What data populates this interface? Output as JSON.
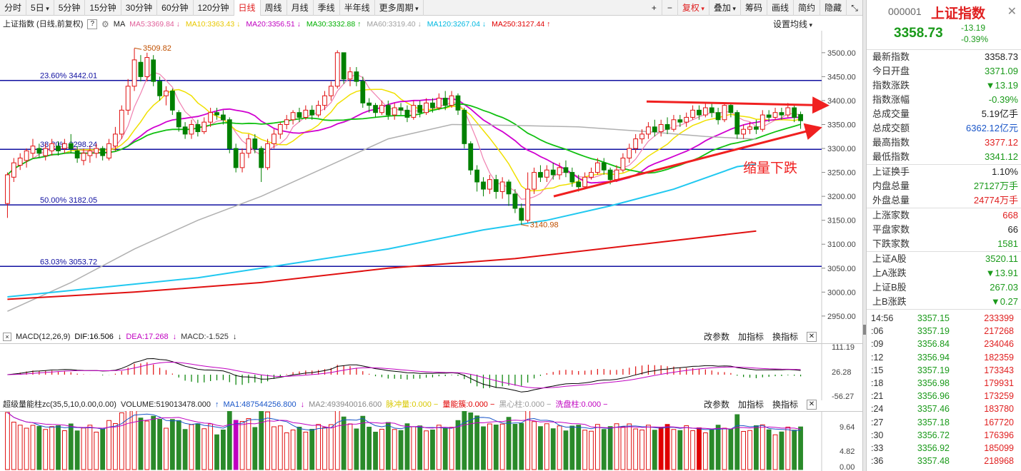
{
  "toolbar": {
    "items": [
      "分时",
      "5日",
      "5分钟",
      "15分钟",
      "30分钟",
      "60分钟",
      "120分钟",
      "日线",
      "周线",
      "月线",
      "季线",
      "半年线",
      "更多周期"
    ],
    "active": "日线",
    "right_items": [
      "+",
      "−",
      "复权",
      "叠加",
      "筹码",
      "画线",
      "简约",
      "隐藏"
    ],
    "dropdown_marker": "▾"
  },
  "main_legend": {
    "title": "上证指数 (日线,前复权)",
    "help": "?",
    "ma_label": "MA",
    "ma_items": [
      {
        "text": "MA5:3369.84",
        "arrow": "↓",
        "color": "#e0609a"
      },
      {
        "text": "MA10:3363.43",
        "arrow": "↓",
        "color": "#e8c800"
      },
      {
        "text": "MA20:3356.51",
        "arrow": "↓",
        "color": "#c000c0"
      },
      {
        "text": "MA30:3332.88",
        "arrow": "↑",
        "color": "#00b000"
      },
      {
        "text": "MA60:3319.40",
        "arrow": "↓",
        "color": "#a0a0a0"
      },
      {
        "text": "MA120:3267.04",
        "arrow": "↓",
        "color": "#00b8e0"
      },
      {
        "text": "MA250:3127.44",
        "arrow": "↑",
        "color": "#e00000"
      }
    ],
    "settings": "设置均线"
  },
  "fib_lines": [
    {
      "label": "23.60% 3442.01",
      "value": 3442.01
    },
    {
      "label": "38.20% 3298.24",
      "value": 3298.24
    },
    {
      "label": "50.00% 3182.05",
      "value": 3182.05
    },
    {
      "label": "63.03% 3053.72",
      "value": 3053.72
    }
  ],
  "annotations": {
    "high": "3509.82",
    "low": "3140.98",
    "text": "缩量下跌"
  },
  "price_axis": [
    "3500.00",
    "3450.00",
    "3400.00",
    "3350.00",
    "3300.00",
    "3250.00",
    "3200.00",
    "3150.00",
    "3100.00",
    "3050.00",
    "3000.00",
    "2950.00"
  ],
  "macd": {
    "label": "MACD(12,26,9)",
    "dif": "DIF:16.506",
    "dea": "DEA:17.268",
    "macd": "MACD:-1.525",
    "axis": [
      "111.19",
      "26.28",
      "-56.27"
    ],
    "buttons": [
      "改参数",
      "加指标",
      "换指标"
    ]
  },
  "volume": {
    "label": "超级量能柱zc(35,5,10,0.00,0.00)",
    "volume": "VOLUME:519013478.000",
    "ma1": "MA1:487544256.800",
    "ma2": "MA2:493940016.600",
    "extra": [
      {
        "text": "脉冲量:0.000",
        "color": "#d8c800"
      },
      {
        "text": "量能簇:0.000",
        "color": "#e00000"
      },
      {
        "text": "黑心柱:0.000",
        "color": "#999999"
      },
      {
        "text": "洗盘柱:0.000",
        "color": "#c000c0"
      }
    ],
    "axis": [
      "9.64",
      "4.82",
      "0.00"
    ],
    "buttons": [
      "改参数",
      "加指标",
      "换指标"
    ]
  },
  "chart_data": {
    "type": "candlestick",
    "price_range": [
      2920,
      3540
    ],
    "candles": [
      [
        3185,
        3245,
        3155,
        3250
      ],
      [
        3240,
        3270,
        3230,
        3280
      ],
      [
        3265,
        3280,
        3255,
        3290
      ],
      [
        3275,
        3295,
        3260,
        3300
      ],
      [
        3290,
        3305,
        3280,
        3320
      ],
      [
        3300,
        3290,
        3280,
        3310
      ],
      [
        3285,
        3300,
        3275,
        3310
      ],
      [
        3295,
        3310,
        3285,
        3320
      ],
      [
        3305,
        3295,
        3285,
        3315
      ],
      [
        3300,
        3310,
        3290,
        3320
      ],
      [
        3310,
        3300,
        3290,
        3330
      ],
      [
        3295,
        3280,
        3270,
        3305
      ],
      [
        3275,
        3290,
        3265,
        3300
      ],
      [
        3285,
        3295,
        3270,
        3305
      ],
      [
        3290,
        3300,
        3280,
        3310
      ],
      [
        3300,
        3285,
        3275,
        3305
      ],
      [
        3280,
        3310,
        3275,
        3320
      ],
      [
        3305,
        3330,
        3295,
        3345
      ],
      [
        3330,
        3380,
        3320,
        3390
      ],
      [
        3380,
        3430,
        3370,
        3445
      ],
      [
        3430,
        3485,
        3420,
        3509
      ],
      [
        3480,
        3450,
        3440,
        3495
      ],
      [
        3450,
        3490,
        3440,
        3500
      ],
      [
        3485,
        3440,
        3430,
        3495
      ],
      [
        3440,
        3410,
        3400,
        3450
      ],
      [
        3410,
        3420,
        3390,
        3430
      ],
      [
        3420,
        3380,
        3370,
        3425
      ],
      [
        3375,
        3345,
        3335,
        3380
      ],
      [
        3345,
        3330,
        3320,
        3355
      ],
      [
        3330,
        3350,
        3320,
        3360
      ],
      [
        3350,
        3335,
        3325,
        3360
      ],
      [
        3335,
        3355,
        3330,
        3365
      ],
      [
        3355,
        3375,
        3345,
        3385
      ],
      [
        3375,
        3370,
        3360,
        3385
      ],
      [
        3370,
        3360,
        3350,
        3380
      ],
      [
        3360,
        3300,
        3290,
        3365
      ],
      [
        3300,
        3260,
        3250,
        3310
      ],
      [
        3260,
        3290,
        3250,
        3300
      ],
      [
        3290,
        3320,
        3280,
        3330
      ],
      [
        3320,
        3300,
        3290,
        3330
      ],
      [
        3300,
        3260,
        3230,
        3305
      ],
      [
        3260,
        3310,
        3255,
        3320
      ],
      [
        3310,
        3330,
        3300,
        3340
      ],
      [
        3330,
        3350,
        3320,
        3355
      ],
      [
        3350,
        3360,
        3340,
        3370
      ],
      [
        3360,
        3375,
        3350,
        3380
      ],
      [
        3375,
        3365,
        3355,
        3385
      ],
      [
        3365,
        3380,
        3360,
        3390
      ],
      [
        3380,
        3370,
        3360,
        3390
      ],
      [
        3370,
        3390,
        3365,
        3400
      ],
      [
        3390,
        3410,
        3380,
        3420
      ],
      [
        3410,
        3430,
        3400,
        3440
      ],
      [
        3430,
        3500,
        3425,
        3505
      ],
      [
        3500,
        3445,
        3435,
        3500
      ],
      [
        3445,
        3460,
        3430,
        3470
      ],
      [
        3460,
        3440,
        3430,
        3470
      ],
      [
        3440,
        3395,
        3385,
        3450
      ],
      [
        3395,
        3390,
        3375,
        3405
      ],
      [
        3390,
        3375,
        3365,
        3395
      ],
      [
        3375,
        3390,
        3370,
        3400
      ],
      [
        3390,
        3370,
        3360,
        3400
      ],
      [
        3370,
        3385,
        3360,
        3395
      ],
      [
        3385,
        3380,
        3370,
        3395
      ],
      [
        3380,
        3365,
        3355,
        3390
      ],
      [
        3365,
        3390,
        3360,
        3400
      ],
      [
        3390,
        3375,
        3365,
        3400
      ],
      [
        3375,
        3395,
        3370,
        3405
      ],
      [
        3395,
        3385,
        3375,
        3405
      ],
      [
        3385,
        3405,
        3380,
        3415
      ],
      [
        3405,
        3390,
        3380,
        3420
      ],
      [
        3390,
        3410,
        3385,
        3420
      ],
      [
        3410,
        3380,
        3370,
        3415
      ],
      [
        3380,
        3310,
        3300,
        3385
      ],
      [
        3310,
        3255,
        3245,
        3315
      ],
      [
        3255,
        3230,
        3210,
        3265
      ],
      [
        3230,
        3215,
        3200,
        3240
      ],
      [
        3215,
        3235,
        3205,
        3245
      ],
      [
        3235,
        3210,
        3195,
        3245
      ],
      [
        3210,
        3230,
        3195,
        3240
      ],
      [
        3230,
        3205,
        3180,
        3235
      ],
      [
        3205,
        3175,
        3165,
        3215
      ],
      [
        3175,
        3150,
        3140,
        3185
      ],
      [
        3150,
        3215,
        3145,
        3250
      ],
      [
        3215,
        3250,
        3205,
        3260
      ],
      [
        3250,
        3240,
        3230,
        3265
      ],
      [
        3240,
        3255,
        3230,
        3265
      ],
      [
        3255,
        3245,
        3235,
        3270
      ],
      [
        3245,
        3260,
        3235,
        3270
      ],
      [
        3260,
        3250,
        3240,
        3275
      ],
      [
        3250,
        3230,
        3220,
        3260
      ],
      [
        3230,
        3220,
        3210,
        3245
      ],
      [
        3220,
        3240,
        3215,
        3250
      ],
      [
        3240,
        3250,
        3235,
        3260
      ],
      [
        3250,
        3270,
        3245,
        3280
      ],
      [
        3270,
        3255,
        3245,
        3280
      ],
      [
        3255,
        3235,
        3225,
        3260
      ],
      [
        3235,
        3255,
        3230,
        3265
      ],
      [
        3255,
        3280,
        3250,
        3290
      ],
      [
        3280,
        3300,
        3270,
        3310
      ],
      [
        3300,
        3320,
        3290,
        3330
      ],
      [
        3320,
        3330,
        3310,
        3340
      ],
      [
        3330,
        3345,
        3320,
        3355
      ],
      [
        3345,
        3335,
        3325,
        3360
      ],
      [
        3335,
        3350,
        3325,
        3360
      ],
      [
        3350,
        3340,
        3330,
        3365
      ],
      [
        3340,
        3360,
        3335,
        3370
      ],
      [
        3360,
        3355,
        3345,
        3370
      ],
      [
        3355,
        3365,
        3345,
        3375
      ],
      [
        3365,
        3380,
        3360,
        3390
      ],
      [
        3380,
        3370,
        3360,
        3390
      ],
      [
        3370,
        3385,
        3365,
        3395
      ],
      [
        3385,
        3375,
        3365,
        3395
      ],
      [
        3375,
        3360,
        3350,
        3385
      ],
      [
        3360,
        3390,
        3355,
        3395
      ],
      [
        3390,
        3375,
        3365,
        3395
      ],
      [
        3375,
        3330,
        3320,
        3380
      ],
      [
        3330,
        3340,
        3320,
        3350
      ],
      [
        3340,
        3345,
        3330,
        3355
      ],
      [
        3345,
        3340,
        3330,
        3360
      ],
      [
        3340,
        3370,
        3335,
        3380
      ],
      [
        3370,
        3365,
        3355,
        3380
      ],
      [
        3365,
        3375,
        3360,
        3385
      ],
      [
        3375,
        3370,
        3360,
        3385
      ],
      [
        3370,
        3385,
        3365,
        3395
      ],
      [
        3385,
        3365,
        3355,
        3390
      ],
      [
        3371,
        3358,
        3341,
        3377
      ]
    ],
    "fib_values": [
      3442.01,
      3298.24,
      3182.05,
      3053.72
    ]
  },
  "right_panel": {
    "code": "000001",
    "name": "上证指数",
    "price": "3358.73",
    "change": "-13.19",
    "change_pct": "-0.39%",
    "stats": [
      [
        {
          "label": "最新指数",
          "value": "3358.73",
          "cls": "dark"
        },
        {
          "label": "今日开盘",
          "value": "3371.09",
          "cls": "green"
        },
        {
          "label": "指数涨跌",
          "value": "▼13.19",
          "cls": "green"
        },
        {
          "label": "指数涨幅",
          "value": "-0.39%",
          "cls": "green"
        },
        {
          "label": "总成交量",
          "value": "5.19亿手",
          "cls": "dark"
        },
        {
          "label": "总成交额",
          "value": "6362.12亿元",
          "cls": "blue"
        },
        {
          "label": "最高指数",
          "value": "3377.12",
          "cls": "red"
        },
        {
          "label": "最低指数",
          "value": "3341.12",
          "cls": "green"
        }
      ],
      [
        {
          "label": "上证换手",
          "value": "1.10%",
          "cls": "dark"
        },
        {
          "label": "内盘总量",
          "value": "27127万手",
          "cls": "green"
        },
        {
          "label": "外盘总量",
          "value": "24774万手",
          "cls": "red"
        }
      ],
      [
        {
          "label": "上涨家数",
          "value": "668",
          "cls": "red"
        },
        {
          "label": "平盘家数",
          "value": "66",
          "cls": "dark"
        },
        {
          "label": "下跌家数",
          "value": "1581",
          "cls": "green"
        }
      ],
      [
        {
          "label": "上证A股",
          "value": "3520.11",
          "cls": "green"
        },
        {
          "label": "上A涨跌",
          "value": "▼13.91",
          "cls": "green"
        },
        {
          "label": "上证B股",
          "value": "267.03",
          "cls": "green"
        },
        {
          "label": "上B涨跌",
          "value": "▼0.27",
          "cls": "green"
        }
      ]
    ],
    "ticks": [
      {
        "t": "14:56",
        "p": "3357.15",
        "v": "233399"
      },
      {
        "t": ":06",
        "p": "3357.19",
        "v": "217268"
      },
      {
        "t": ":09",
        "p": "3356.84",
        "v": "234046"
      },
      {
        "t": ":12",
        "p": "3356.94",
        "v": "182359"
      },
      {
        "t": ":15",
        "p": "3357.19",
        "v": "173343"
      },
      {
        "t": ":18",
        "p": "3356.98",
        "v": "179931"
      },
      {
        "t": ":21",
        "p": "3356.96",
        "v": "173259"
      },
      {
        "t": ":24",
        "p": "3357.46",
        "v": "183780"
      },
      {
        "t": ":27",
        "p": "3357.18",
        "v": "167720"
      },
      {
        "t": ":30",
        "p": "3356.72",
        "v": "176396"
      },
      {
        "t": ":33",
        "p": "3356.92",
        "v": "185099"
      },
      {
        "t": ":36",
        "p": "3357.48",
        "v": "218968"
      }
    ]
  }
}
